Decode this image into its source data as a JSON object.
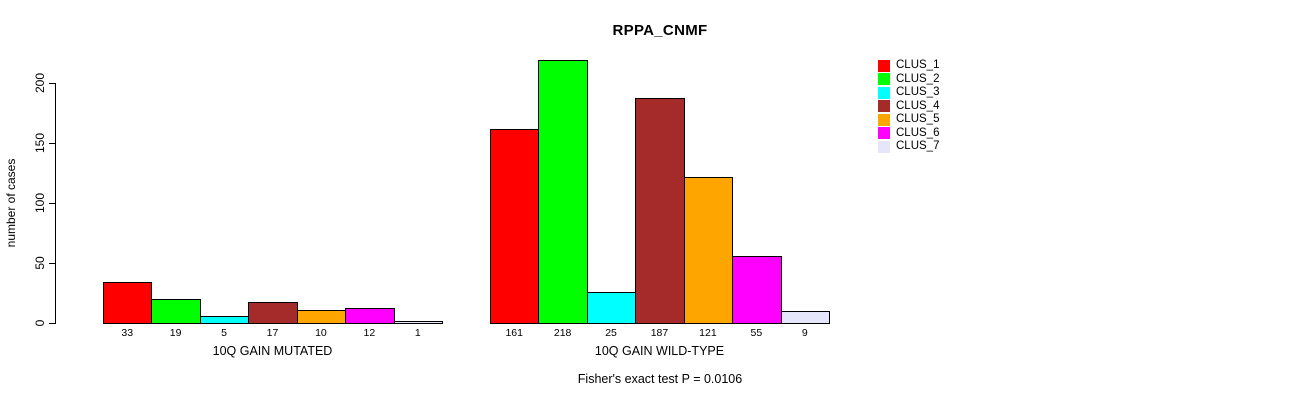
{
  "chart_data": {
    "type": "bar",
    "title": "RPPA_CNMF",
    "ylabel": "number of cases",
    "xlabel": "",
    "yticks": [
      0,
      50,
      100,
      150,
      200
    ],
    "ylim": [
      0,
      220
    ],
    "grid": false,
    "legend_position": "right",
    "bar_border_color": "#000000",
    "groups": [
      {
        "label": "10Q GAIN MUTATED",
        "values": [
          33,
          19,
          5,
          17,
          10,
          12,
          1
        ]
      },
      {
        "label": "10Q GAIN WILD-TYPE",
        "values": [
          161,
          218,
          25,
          187,
          121,
          55,
          9
        ]
      }
    ],
    "legend": [
      {
        "label": "CLUS_1",
        "color": "#FF0000"
      },
      {
        "label": "CLUS_2",
        "color": "#00FF00"
      },
      {
        "label": "CLUS_3",
        "color": "#00FFFF"
      },
      {
        "label": "CLUS_4",
        "color": "#A52A2A"
      },
      {
        "label": "CLUS_5",
        "color": "#FFA500"
      },
      {
        "label": "CLUS_6",
        "color": "#FF00FF"
      },
      {
        "label": "CLUS_7",
        "color": "#E6E6FA"
      }
    ],
    "footer": "Fisher's exact test P = 0.0106"
  }
}
